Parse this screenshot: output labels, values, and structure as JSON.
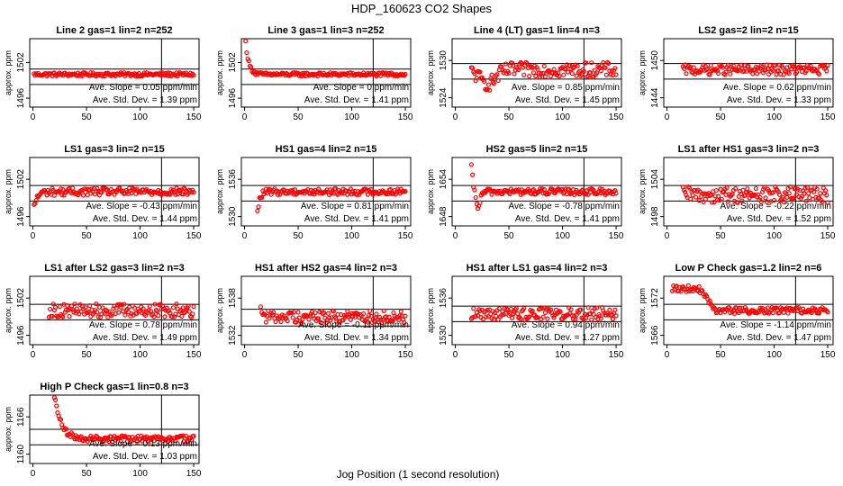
{
  "figure": {
    "title": "HDP_160623  CO2 Shapes",
    "xlabel": "Jog Position (1 second resolution)"
  },
  "chart_data": [
    {
      "type": "scatter",
      "title": "Line 2 gas=1 lin=2 n=252",
      "ylabel": "approx. ppm",
      "xlim": [
        -3,
        155
      ],
      "xticks": [
        0,
        50,
        100,
        150
      ],
      "yticks": [
        1496,
        1502
      ],
      "ylim": [
        1494.5,
        1506
      ],
      "hlines": [
        1500.9,
        1498.3
      ],
      "vline": 120,
      "x_range": [
        1,
        150
      ],
      "shape": "flat",
      "base": 1500,
      "noise": 0.3,
      "start": 1500,
      "decay": 0,
      "slope": "Ave. Slope = 0.05  ppm/min",
      "stdev": "Ave. Std. Dev. = 1.39  ppm",
      "marker_color": "#ff0000"
    },
    {
      "type": "scatter",
      "title": "Line 3 gas=1 lin=3 n=252",
      "ylabel": "approx. ppm",
      "xlim": [
        -3,
        155
      ],
      "xticks": [
        0,
        50,
        100,
        150
      ],
      "yticks": [
        1496,
        1502
      ],
      "ylim": [
        1494.5,
        1506
      ],
      "hlines": [
        1500.9,
        1498.3
      ],
      "vline": 120,
      "x_range": [
        1,
        150
      ],
      "shape": "decay",
      "base": 1500,
      "noise": 0.3,
      "start": 1505.5,
      "decay": 3,
      "slope": "Ave. Slope = 0  ppm/min",
      "stdev": "Ave. Std. Dev. = 1.41  ppm",
      "marker_color": "#ff0000"
    },
    {
      "type": "scatter",
      "title": "Line 4 (LT) gas=1 lin=4 n=3",
      "ylabel": "approx. ppm",
      "xlim": [
        -3,
        155
      ],
      "xticks": [
        0,
        50,
        100,
        150
      ],
      "yticks": [
        1524,
        1530
      ],
      "ylim": [
        1522.5,
        1533.5
      ],
      "hlines": [
        1529.5,
        1527
      ],
      "vline": 120,
      "x_range": [
        15,
        150
      ],
      "shape": "dip",
      "base": 1528.5,
      "noise": 1.2,
      "start": 1528.5,
      "decay": 0,
      "slope": "Ave. Slope = 0.85  ppm/min",
      "stdev": "Ave. Std. Dev. = 1.45  ppm",
      "marker_color": "#ff0000"
    },
    {
      "type": "scatter",
      "title": "LS2 gas=2 lin=2 n=15",
      "ylabel": "approx. ppm",
      "xlim": [
        -3,
        155
      ],
      "xticks": [
        0,
        50,
        100,
        150
      ],
      "yticks": [
        1444,
        1450
      ],
      "ylim": [
        1442.5,
        1453.5
      ],
      "hlines": [
        1449.5,
        1447
      ],
      "vline": 120,
      "x_range": [
        15,
        150
      ],
      "shape": "flat",
      "base": 1448.5,
      "noise": 0.8,
      "start": 1448.5,
      "decay": 0,
      "slope": "Ave. Slope = 0.62  ppm/min",
      "stdev": "Ave. Std. Dev. = 1.33  ppm",
      "marker_color": "#ff0000"
    },
    {
      "type": "scatter",
      "title": "LS1 gas=3 lin=2 n=15",
      "ylabel": "approx. ppm",
      "xlim": [
        -3,
        155
      ],
      "xticks": [
        0,
        50,
        100,
        150
      ],
      "yticks": [
        1496,
        1502
      ],
      "ylim": [
        1494.5,
        1505.5
      ],
      "hlines": [
        1501,
        1498.5
      ],
      "vline": 120,
      "x_range": [
        1,
        150
      ],
      "shape": "rise",
      "base": 1500,
      "noise": 0.6,
      "start": 1497.5,
      "decay": 3,
      "slope": "Ave. Slope = -0.43  ppm/min",
      "stdev": "Ave. Std. Dev. = 1.44  ppm",
      "marker_color": "#ff0000"
    },
    {
      "type": "scatter",
      "title": "HS1 gas=4 lin=2 n=15",
      "ylabel": "approx. ppm",
      "xlim": [
        -3,
        155
      ],
      "xticks": [
        0,
        50,
        100,
        150
      ],
      "yticks": [
        1530,
        1536
      ],
      "ylim": [
        1528.5,
        1539.5
      ],
      "hlines": [
        1535,
        1532.5
      ],
      "vline": 120,
      "x_range": [
        12,
        150
      ],
      "shape": "rise",
      "base": 1534,
      "noise": 0.5,
      "start": 1530.5,
      "decay": 2,
      "slope": "Ave. Slope = 0.81  ppm/min",
      "stdev": "Ave. Std. Dev. = 1.41  ppm",
      "marker_color": "#ff0000"
    },
    {
      "type": "scatter",
      "title": "HS2 gas=5 lin=2 n=15",
      "ylabel": "approx. ppm",
      "xlim": [
        -3,
        155
      ],
      "xticks": [
        0,
        50,
        100,
        150
      ],
      "yticks": [
        1648,
        1654
      ],
      "ylim": [
        1646.5,
        1657.5
      ],
      "hlines": [
        1653,
        1650.5
      ],
      "vline": 120,
      "x_range": [
        15,
        150
      ],
      "shape": "dipthen",
      "base": 1652,
      "noise": 0.5,
      "start": 1656,
      "decay": 2,
      "slope": "Ave. Slope = -0.78  ppm/min",
      "stdev": "Ave. Std. Dev. = 1.41  ppm",
      "marker_color": "#ff0000"
    },
    {
      "type": "scatter",
      "title": "LS1 after HS1 gas=3 lin=2 n=3",
      "ylabel": "approx. ppm",
      "xlim": [
        -3,
        155
      ],
      "xticks": [
        0,
        50,
        100,
        150
      ],
      "yticks": [
        1498,
        1504
      ],
      "ylim": [
        1496.5,
        1507.5
      ],
      "hlines": [
        1503,
        1500.5
      ],
      "vline": 120,
      "x_range": [
        15,
        150
      ],
      "shape": "flat",
      "base": 1501.5,
      "noise": 1.3,
      "start": 1505,
      "decay": 2,
      "slope": "Ave. Slope = -0.22  ppm/min",
      "stdev": "Ave. Std. Dev. = 1.52  ppm",
      "marker_color": "#ff0000"
    },
    {
      "type": "scatter",
      "title": "LS1 after LS2 gas=3 lin=2 n=3",
      "ylabel": "approx. ppm",
      "xlim": [
        -3,
        155
      ],
      "xticks": [
        0,
        50,
        100,
        150
      ],
      "yticks": [
        1496,
        1502
      ],
      "ylim": [
        1494.5,
        1505.5
      ],
      "hlines": [
        1501,
        1498.5
      ],
      "vline": 120,
      "x_range": [
        15,
        150
      ],
      "shape": "flat",
      "base": 1500,
      "noise": 1.1,
      "start": 1500,
      "decay": 0,
      "slope": "Ave. Slope = 0.78  ppm/min",
      "stdev": "Ave. Std. Dev. = 1.49  ppm",
      "marker_color": "#ff0000"
    },
    {
      "type": "scatter",
      "title": "HS1 after HS2 gas=4 lin=2 n=3",
      "ylabel": "approx. ppm",
      "xlim": [
        -3,
        155
      ],
      "xticks": [
        0,
        50,
        100,
        150
      ],
      "yticks": [
        1532,
        1538
      ],
      "ylim": [
        1530.5,
        1541.5
      ],
      "hlines": [
        1536.2,
        1533.5
      ],
      "vline": 120,
      "x_range": [
        15,
        150
      ],
      "shape": "decay",
      "base": 1535,
      "noise": 1.0,
      "start": 1537.5,
      "decay": 1,
      "slope": "Ave. Slope = -0.11  ppm/min",
      "stdev": "Ave. Std. Dev. = 1.34  ppm",
      "marker_color": "#ff0000"
    },
    {
      "type": "scatter",
      "title": "HS1 after LS1 gas=4 lin=2 n=3",
      "ylabel": "approx. ppm",
      "xlim": [
        -3,
        155
      ],
      "xticks": [
        0,
        50,
        100,
        150
      ],
      "yticks": [
        1530,
        1536
      ],
      "ylim": [
        1528.5,
        1539.5
      ],
      "hlines": [
        1534.7,
        1532.2
      ],
      "vline": 120,
      "x_range": [
        15,
        150
      ],
      "shape": "flat",
      "base": 1533.5,
      "noise": 1.0,
      "start": 1533.5,
      "decay": 0,
      "slope": "Ave. Slope = 0.94  ppm/min",
      "stdev": "Ave. Std. Dev. = 1.27  ppm",
      "marker_color": "#ff0000"
    },
    {
      "type": "scatter",
      "title": "Low P Check gas=1.2 lin=2 n=6",
      "ylabel": "approx. ppm",
      "xlim": [
        -3,
        155
      ],
      "xticks": [
        0,
        50,
        100,
        150
      ],
      "yticks": [
        1566,
        1572
      ],
      "ylim": [
        1564.5,
        1575.5
      ],
      "hlines": [
        1571,
        1568.5
      ],
      "vline": 120,
      "x_range": [
        5,
        150
      ],
      "shape": "decline",
      "base": 1570,
      "noise": 0.5,
      "start": 1573.5,
      "decay": 0,
      "slope": "Ave. Slope = -1.14  ppm/min",
      "stdev": "Ave. Std. Dev. = 1.47  ppm",
      "marker_color": "#ff0000"
    },
    {
      "type": "scatter",
      "title": "High P Check gas=1 lin=0.8 n=3",
      "ylabel": "approx. ppm",
      "xlim": [
        -3,
        155
      ],
      "xticks": [
        0,
        50,
        100,
        150
      ],
      "yticks": [
        1160,
        1166
      ],
      "ylim": [
        1158.5,
        1169.5
      ],
      "hlines": [
        1164,
        1161.5
      ],
      "vline": 120,
      "x_range": [
        20,
        150
      ],
      "shape": "decay",
      "base": 1162.5,
      "noise": 0.5,
      "start": 1169.5,
      "decay": 6,
      "slope": "Ave. Slope = 0.13  ppm/min",
      "stdev": "Ave. Std. Dev. = 1.03  ppm",
      "marker_color": "#ff0000"
    }
  ]
}
